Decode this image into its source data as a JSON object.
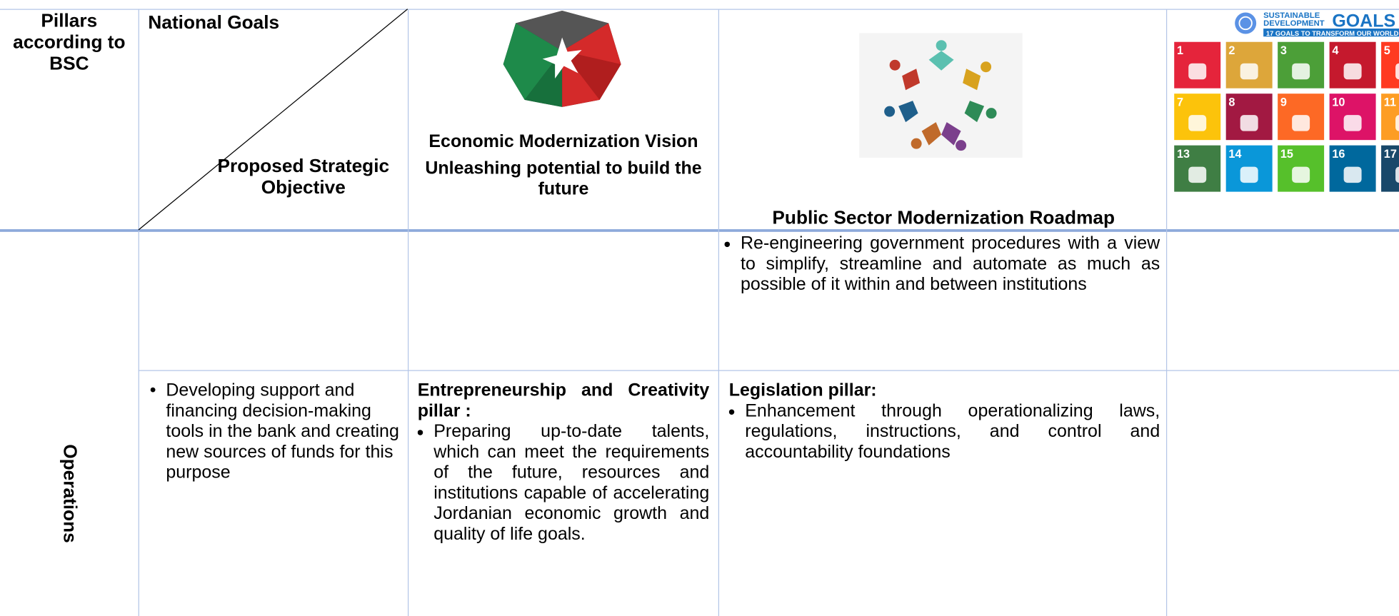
{
  "header": {
    "pillars": "Pillars according to BSC",
    "national_goals": "National Goals",
    "proposed_objective": "Proposed Strategic Objective",
    "emv": {
      "title": "Economic Modernization Vision",
      "tagline": "Unleashing potential to build the future"
    },
    "psmr": "Public Sector Modernization Roadmap",
    "sdg": {
      "brand_top": "SUSTAINABLE",
      "brand_mid": "DEVELOPMENT",
      "brand_goals": "GOALS",
      "subtitle": "17 GOALS TO TRANSFORM OUR WORLD",
      "tiles": [
        1,
        2,
        3,
        4,
        5,
        7,
        8,
        9,
        10,
        11,
        13,
        14,
        15,
        16,
        17
      ]
    }
  },
  "rows": [
    {
      "psmr": [
        "Re-engineering government procedures with a view to simplify, streamline and automate as much as possible of it within and between institutions"
      ]
    },
    {
      "pillar": "Operations",
      "objective": [
        "Developing support and financing decision-making tools in the bank and creating new sources of funds for this purpose"
      ],
      "emv": {
        "heading": "Entrepreneurship and Creativity pillar :",
        "bullets": [
          "Preparing up-to-date talents, which can meet the requirements of the future, resources and institutions capable of accelerating Jordanian economic growth and quality of life goals."
        ]
      },
      "psmr": {
        "heading": "Legislation pillar:",
        "bullets": [
          "Enhancement through operationalizing laws, regulations, instructions, and control and accountability foundations"
        ]
      }
    }
  ]
}
